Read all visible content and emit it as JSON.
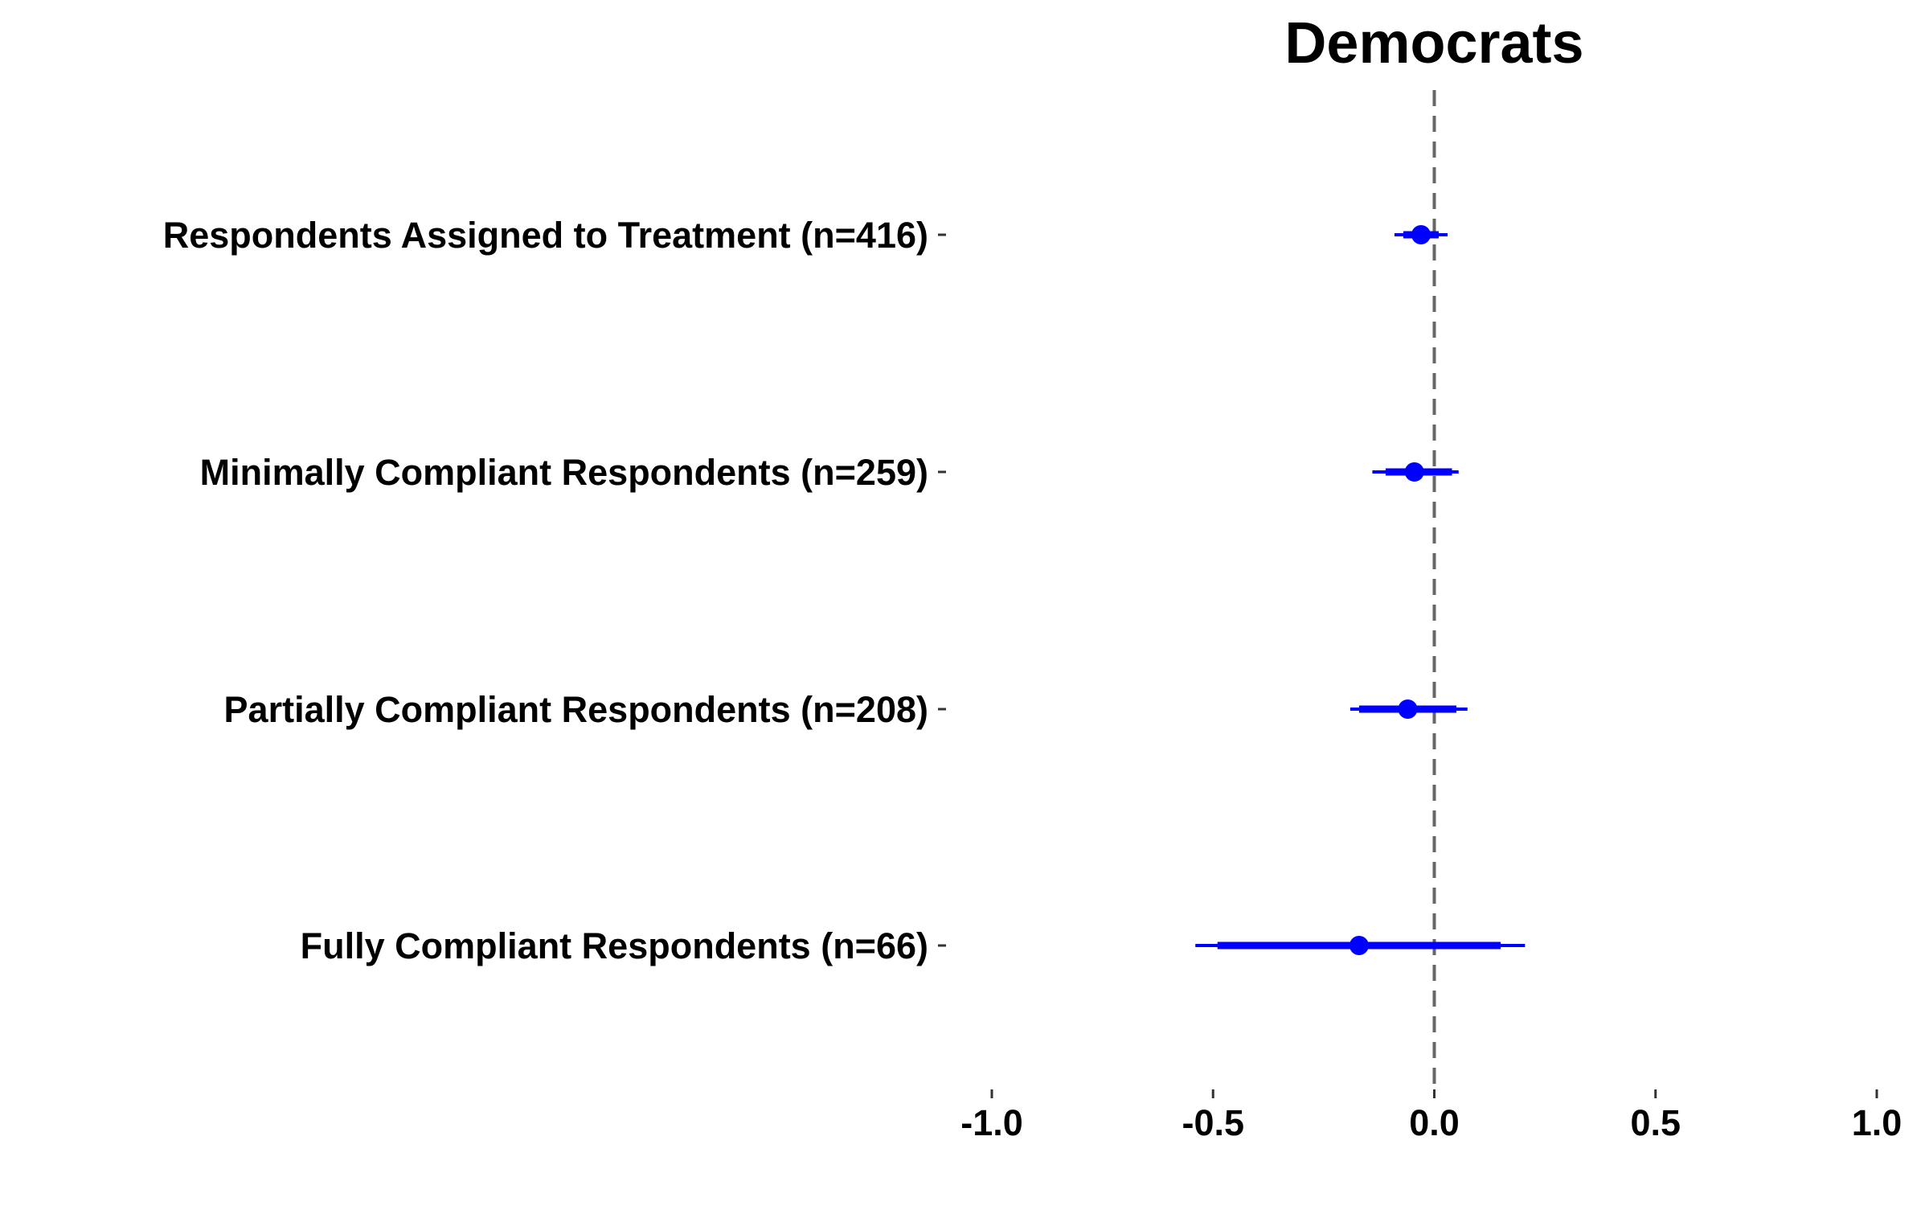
{
  "chart_data": {
    "type": "coefficient-plot",
    "title": "Democrats",
    "xlabel": "",
    "ylabel": "",
    "xlim": [
      -1.0,
      1.0
    ],
    "x_ticks": [
      -1.0,
      -0.5,
      0.0,
      0.5,
      1.0
    ],
    "x_tick_labels": [
      "-1.0",
      "-0.5",
      "0.0",
      "0.5",
      "1.0"
    ],
    "reference_line": 0.0,
    "grid": false,
    "legend": "none",
    "color": "#0000ff",
    "categories": [
      "Respondents Assigned to Treatment (n=416)",
      "Minimally Compliant Respondents (n=259)",
      "Partially Compliant Respondents (n=208)",
      "Fully Compliant Respondents (n=66)"
    ],
    "estimates": [
      -0.03,
      -0.045,
      -0.06,
      -0.17
    ],
    "ci_inner": [
      [
        -0.07,
        0.01
      ],
      [
        -0.11,
        0.04
      ],
      [
        -0.17,
        0.05
      ],
      [
        -0.49,
        0.15
      ]
    ],
    "ci_outer": [
      [
        -0.09,
        0.03
      ],
      [
        -0.14,
        0.055
      ],
      [
        -0.19,
        0.075
      ],
      [
        -0.54,
        0.205
      ]
    ]
  }
}
